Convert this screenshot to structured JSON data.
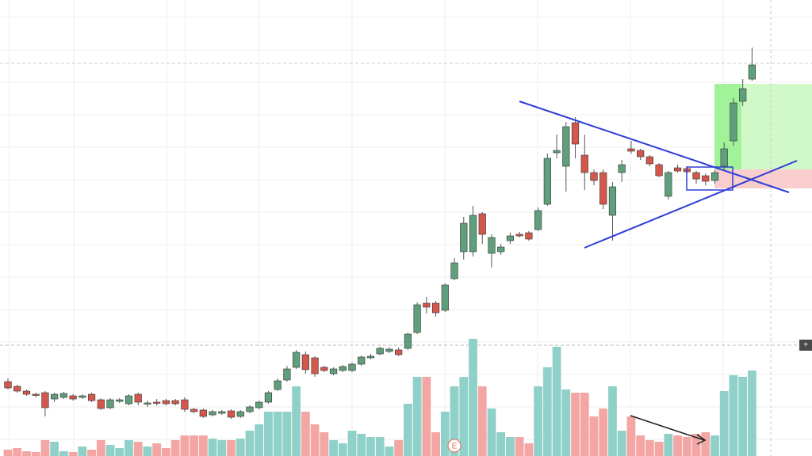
{
  "chart_data": {
    "type": "candlestick",
    "open": [
      18,
      12,
      6,
      2,
      4,
      -4,
      -2,
      0,
      -2,
      2,
      -5,
      -15,
      -7,
      -10,
      2,
      -10,
      -8,
      -6,
      -6,
      -5,
      -17,
      -18,
      -24,
      -22,
      -19,
      -26,
      -20,
      -15,
      -8,
      8,
      20,
      36,
      52,
      48,
      36,
      28,
      32,
      32,
      40,
      48,
      53,
      56,
      58,
      60,
      80,
      117,
      117,
      108,
      148,
      182,
      182,
      230,
      180,
      182,
      196,
      204,
      206,
      210,
      242,
      307,
      290,
      345,
      304,
      282,
      282,
      228,
      282,
      312,
      310,
      302,
      292,
      252,
      288,
      287,
      282,
      278,
      272,
      290,
      322,
      372,
      400
    ],
    "high": [
      22,
      14,
      8,
      4,
      6,
      4,
      5,
      2,
      2,
      4,
      -3,
      -3,
      -3,
      2,
      4,
      -6,
      -4,
      -4,
      -4,
      -2,
      -15,
      -16,
      -18,
      -18,
      -17,
      -18,
      -12,
      -6,
      6,
      22,
      38,
      58,
      56,
      50,
      38,
      36,
      39,
      42,
      51,
      53,
      62,
      61,
      61,
      80,
      118,
      125,
      120,
      142,
      174,
      226,
      240,
      232,
      204,
      192,
      206,
      207,
      208,
      238,
      306,
      330,
      346,
      352,
      330,
      286,
      286,
      270,
      298,
      322,
      312,
      304,
      294,
      284,
      292,
      290,
      284,
      281,
      285,
      320,
      376,
      400,
      440
    ],
    "low": [
      8,
      4,
      0,
      -2,
      -26,
      -8,
      -4,
      -6,
      -4,
      -8,
      -18,
      -17,
      -9,
      -12,
      -12,
      -14,
      -12,
      -12,
      -12,
      -20,
      -22,
      -28,
      -26,
      -24,
      -29,
      -28,
      -22,
      -17,
      -10,
      6,
      18,
      34,
      28,
      24,
      30,
      26,
      30,
      30,
      38,
      46,
      51,
      54,
      50,
      58,
      78,
      104,
      100,
      106,
      146,
      172,
      176,
      192,
      162,
      178,
      192,
      200,
      196,
      208,
      240,
      300,
      258,
      300,
      260,
      266,
      236,
      196,
      270,
      306,
      298,
      290,
      276,
      248,
      282,
      280,
      268,
      266,
      268,
      286,
      316,
      366,
      398
    ],
    "close": [
      10,
      6,
      2,
      1,
      -15,
      2,
      3,
      -4,
      0,
      -6,
      -16,
      -5,
      -5,
      0,
      -8,
      -9,
      -9,
      -10,
      -10,
      -17,
      -20,
      -26,
      -20,
      -20,
      -27,
      -20,
      -14,
      -8,
      4,
      19,
      34,
      55,
      33,
      28,
      32,
      34,
      37,
      40,
      49,
      50,
      60,
      59,
      52,
      78,
      115,
      112,
      105,
      140,
      168,
      218,
      228,
      204,
      200,
      188,
      202,
      202,
      198,
      234,
      300,
      310,
      340,
      318,
      282,
      272,
      242,
      264,
      292,
      309,
      302,
      293,
      278,
      282,
      284,
      283,
      274,
      271,
      282,
      312,
      370,
      388,
      418
    ],
    "volume": [
      8,
      10,
      6,
      5,
      20,
      18,
      6,
      5,
      12,
      8,
      20,
      14,
      10,
      20,
      18,
      12,
      16,
      10,
      20,
      26,
      26,
      26,
      22,
      20,
      20,
      22,
      32,
      40,
      56,
      56,
      56,
      88,
      56,
      40,
      30,
      20,
      16,
      32,
      28,
      24,
      24,
      12,
      20,
      66,
      100,
      100,
      30,
      56,
      88,
      100,
      148,
      88,
      60,
      30,
      24,
      24,
      16,
      88,
      112,
      138,
      84,
      80,
      80,
      50,
      60,
      88,
      32,
      50,
      26,
      20,
      18,
      28,
      26,
      24,
      28,
      30,
      26,
      82,
      102,
      100,
      108
    ],
    "ylim": [
      -76,
      500
    ],
    "volume_lim": [
      0,
      576
    ],
    "up_color": "#5f9f7c",
    "down_color": "#d4574c",
    "volume_up_color": "#8fd1c9",
    "volume_down_color": "#f3a6a4",
    "grid": true,
    "earnings_marker": "E",
    "add_button": "+"
  }
}
